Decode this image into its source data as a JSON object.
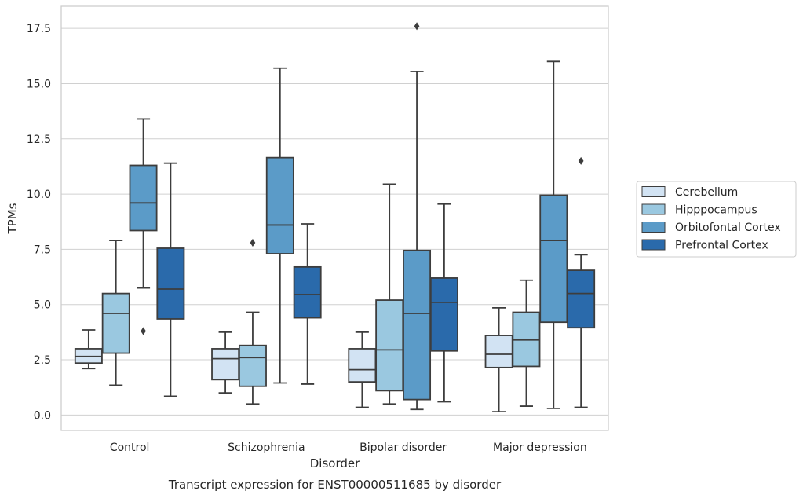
{
  "chart_data": {
    "type": "box",
    "title": "Transcript expression for ENST00000511685 by disorder",
    "xlabel": "Disorder",
    "ylabel": "TPMs",
    "ylim": [
      -0.7,
      18.5
    ],
    "yticks": [
      "0.0",
      "2.5",
      "5.0",
      "7.5",
      "10.0",
      "12.5",
      "15.0",
      "17.5"
    ],
    "grid": true,
    "legend_position": "right",
    "categories": [
      "Control",
      "Schizophrenia",
      "Bipolar disorder",
      "Major depression"
    ],
    "series": [
      {
        "name": "Cerebellum",
        "color": "#d2e3f3",
        "boxes": [
          {
            "whislo": 2.1,
            "q1": 2.35,
            "med": 2.65,
            "q3": 3.0,
            "whishi": 3.85,
            "fliers": []
          },
          {
            "whislo": 1.0,
            "q1": 1.6,
            "med": 2.55,
            "q3": 3.0,
            "whishi": 3.75,
            "fliers": []
          },
          {
            "whislo": 0.35,
            "q1": 1.5,
            "med": 2.05,
            "q3": 3.0,
            "whishi": 3.75,
            "fliers": []
          },
          {
            "whislo": 0.15,
            "q1": 2.15,
            "med": 2.75,
            "q3": 3.6,
            "whishi": 4.85,
            "fliers": []
          }
        ]
      },
      {
        "name": "Hipppocampus",
        "color": "#9ac8e0",
        "boxes": [
          {
            "whislo": 1.35,
            "q1": 2.8,
            "med": 4.6,
            "q3": 5.5,
            "whishi": 7.9,
            "fliers": []
          },
          {
            "whislo": 0.5,
            "q1": 1.3,
            "med": 2.6,
            "q3": 3.15,
            "whishi": 4.65,
            "fliers": [
              7.8
            ]
          },
          {
            "whislo": 0.5,
            "q1": 1.1,
            "med": 2.95,
            "q3": 5.2,
            "whishi": 10.45,
            "fliers": []
          },
          {
            "whislo": 0.4,
            "q1": 2.2,
            "med": 3.4,
            "q3": 4.65,
            "whishi": 6.1,
            "fliers": []
          }
        ]
      },
      {
        "name": "Orbitofontal Cortex",
        "color": "#5b9bc8",
        "boxes": [
          {
            "whislo": 5.75,
            "q1": 8.35,
            "med": 9.6,
            "q3": 11.3,
            "whishi": 13.4,
            "fliers": [
              3.8
            ]
          },
          {
            "whislo": 1.45,
            "q1": 7.3,
            "med": 8.6,
            "q3": 11.65,
            "whishi": 15.7,
            "fliers": []
          },
          {
            "whislo": 0.25,
            "q1": 0.7,
            "med": 4.6,
            "q3": 7.45,
            "whishi": 15.55,
            "fliers": [
              17.6
            ]
          },
          {
            "whislo": 0.3,
            "q1": 4.2,
            "med": 7.9,
            "q3": 9.95,
            "whishi": 16.0,
            "fliers": []
          }
        ]
      },
      {
        "name": "Prefrontal Cortex",
        "color": "#2a6aab",
        "boxes": [
          {
            "whislo": 0.85,
            "q1": 4.35,
            "med": 5.7,
            "q3": 7.55,
            "whishi": 11.4,
            "fliers": []
          },
          {
            "whislo": 1.4,
            "q1": 4.4,
            "med": 5.45,
            "q3": 6.7,
            "whishi": 8.65,
            "fliers": []
          },
          {
            "whislo": 0.6,
            "q1": 2.9,
            "med": 5.1,
            "q3": 6.2,
            "whishi": 9.55,
            "fliers": []
          },
          {
            "whislo": 0.35,
            "q1": 3.95,
            "med": 5.5,
            "q3": 6.55,
            "whishi": 7.25,
            "fliers": [
              11.5
            ]
          }
        ]
      }
    ]
  }
}
